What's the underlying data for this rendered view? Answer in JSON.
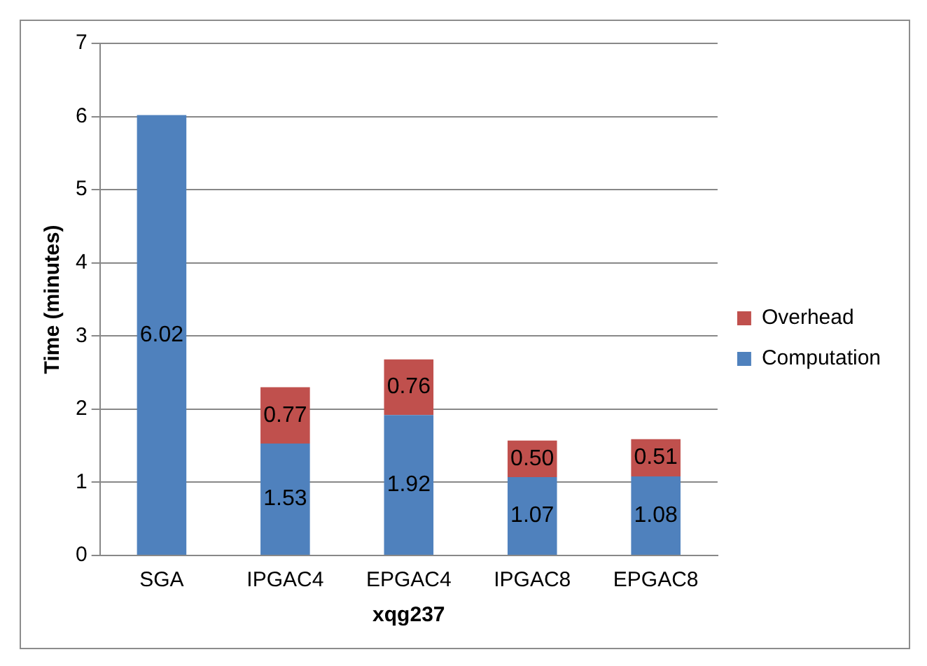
{
  "chart_data": {
    "type": "bar",
    "stacked": true,
    "xlabel": "xqg237",
    "ylabel": "Time (minutes)",
    "categories": [
      "SGA",
      "IPGAC4",
      "EPGAC4",
      "IPGAC8",
      "EPGAC8"
    ],
    "series": [
      {
        "name": "Computation",
        "color": "#4f81bd",
        "values": [
          6.02,
          1.53,
          1.92,
          1.07,
          1.08
        ],
        "value_labels": [
          "6.02",
          "1.53",
          "1.92",
          "1.07",
          "1.08"
        ]
      },
      {
        "name": "Overhead",
        "color": "#c0504d",
        "values": [
          null,
          0.77,
          0.76,
          0.5,
          0.51
        ],
        "value_labels": [
          null,
          "0.77",
          "0.76",
          "0.50",
          "0.51"
        ]
      }
    ],
    "ylim": [
      0,
      7
    ],
    "yticks": [
      0,
      1,
      2,
      3,
      4,
      5,
      6,
      7
    ],
    "grid": "y",
    "legend": "right"
  }
}
